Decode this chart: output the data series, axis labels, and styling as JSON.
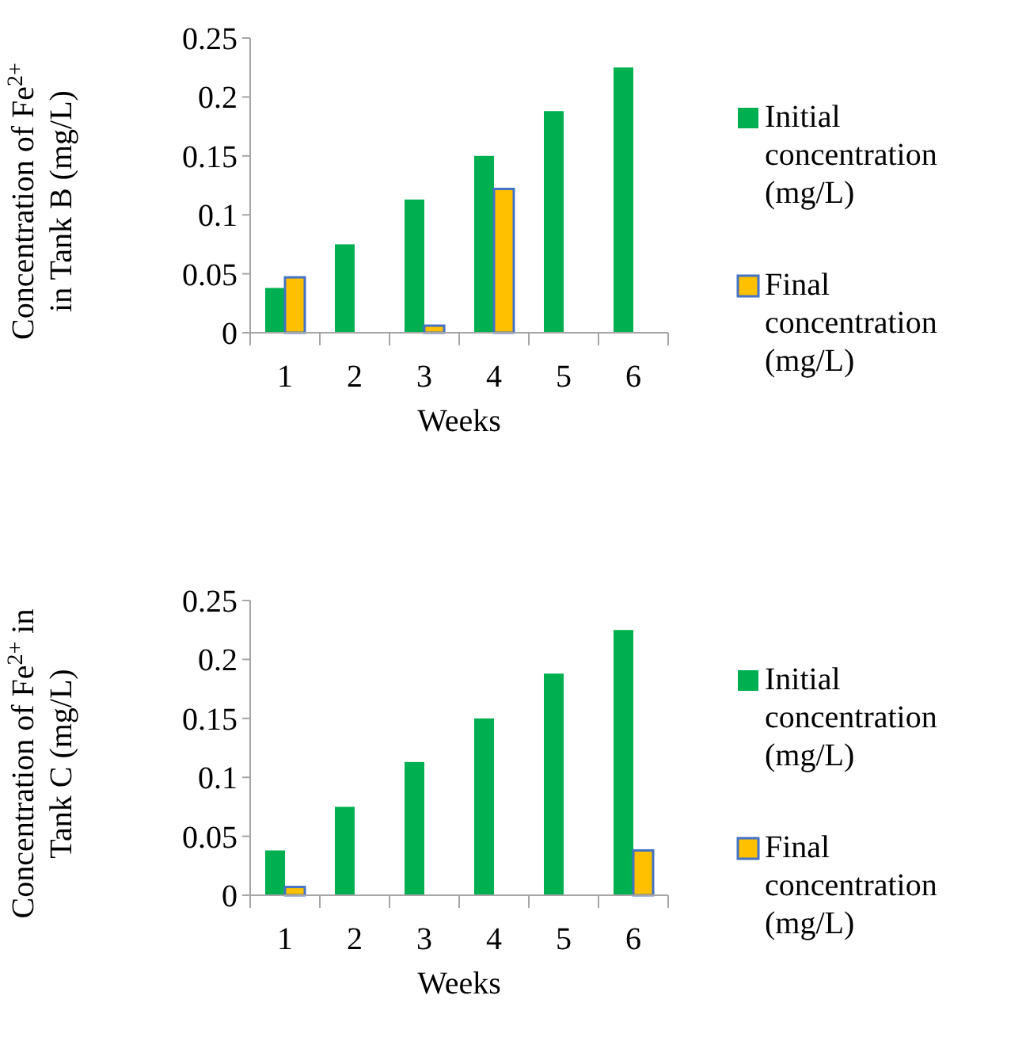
{
  "chart_data": [
    {
      "type": "bar",
      "categories": [
        "1",
        "2",
        "3",
        "4",
        "5",
        "6"
      ],
      "xlabel": "Weeks",
      "ylabel": "Concentration of Fe$^{2+}$\nin Tank B (mg/L)",
      "ylim": [
        0,
        0.25
      ],
      "yticks": [
        0,
        0.05,
        0.1,
        0.15,
        0.2,
        0.25
      ],
      "grid": false,
      "legend": "right",
      "series": [
        {
          "name": "Initial concentration (mg/L)",
          "color": "#00b050",
          "values": [
            0.038,
            0.075,
            0.113,
            0.15,
            0.188,
            0.225
          ]
        },
        {
          "name": "Final concentration (mg/L)",
          "color": "#ffc000",
          "values": [
            0.047,
            null,
            0.006,
            0.122,
            null,
            null
          ]
        }
      ]
    },
    {
      "type": "bar",
      "categories": [
        "1",
        "2",
        "3",
        "4",
        "5",
        "6"
      ],
      "xlabel": "Weeks",
      "ylabel": "Concentration of Fe$^{2+}$ in\nTank C (mg/L)",
      "ylim": [
        0,
        0.25
      ],
      "yticks": [
        0,
        0.05,
        0.1,
        0.15,
        0.2,
        0.25
      ],
      "grid": false,
      "legend": "right",
      "series": [
        {
          "name": "Initial concentration (mg/L)",
          "color": "#00b050",
          "values": [
            0.038,
            0.075,
            0.113,
            0.15,
            0.188,
            0.225
          ]
        },
        {
          "name": "Final concentration (mg/L)",
          "color": "#ffc000",
          "values": [
            0.007,
            null,
            null,
            null,
            null,
            0.038
          ]
        }
      ]
    }
  ]
}
